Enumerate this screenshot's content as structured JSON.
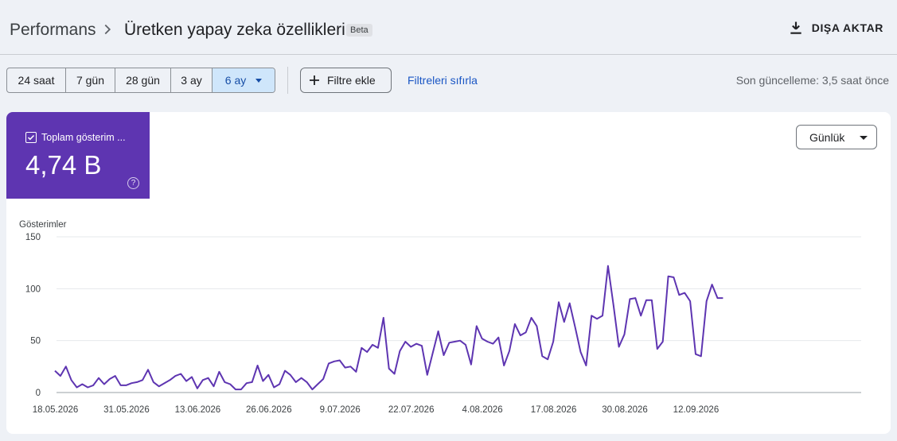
{
  "header": {
    "breadcrumb_root": "Performans",
    "title": "Üretken yapay zeka özellikleri",
    "badge": "Beta",
    "export_label": "DIŞA AKTAR"
  },
  "filters": {
    "ranges": [
      {
        "label": "24 saat",
        "selected": false
      },
      {
        "label": "7 gün",
        "selected": false
      },
      {
        "label": "28 gün",
        "selected": false
      },
      {
        "label": "3 ay",
        "selected": false
      },
      {
        "label": "6 ay",
        "selected": true
      }
    ],
    "add_filter": "Filtre ekle",
    "reset": "Filtreleri sıfırla",
    "last_updated": "Son güncelleme: 3,5 saat önce"
  },
  "metric": {
    "label": "Toplam gösterim ...",
    "value": "4,74 B",
    "help_glyph": "?",
    "color": "#5e35b1"
  },
  "granularity": "Günlük",
  "colors": {
    "accent": "#5e35b1",
    "selected_bg": "#cfe6fb",
    "link": "#1a56c4"
  },
  "chart_data": {
    "type": "line",
    "ylabel": "Gösterimler",
    "ylim": [
      0,
      150
    ],
    "yticks": [
      0,
      50,
      100,
      150
    ],
    "x_tick_labels": [
      "18.05.2026",
      "31.05.2026",
      "13.06.2026",
      "26.06.2026",
      "9.07.2026",
      "22.07.2026",
      "4.08.2026",
      "17.08.2026",
      "30.08.2026",
      "12.09.2026"
    ],
    "x_start": "18.05.2026",
    "x_tick_interval_days": 13,
    "series": [
      {
        "color": "#5e35b1",
        "values": [
          21,
          16,
          25,
          12,
          5,
          8,
          5,
          7,
          14,
          8,
          13,
          16,
          7,
          7,
          9,
          10,
          12,
          22,
          10,
          6,
          9,
          12,
          16,
          18,
          11,
          15,
          4,
          12,
          14,
          6,
          20,
          10,
          8,
          3,
          3,
          9,
          10,
          26,
          11,
          17,
          5,
          8,
          21,
          17,
          10,
          14,
          10,
          3,
          8,
          13,
          28,
          30,
          31,
          24,
          25,
          20,
          43,
          39,
          46,
          43,
          72,
          23,
          18,
          40,
          49,
          44,
          47,
          45,
          17,
          38,
          59,
          36,
          48,
          49,
          50,
          46,
          27,
          64,
          52,
          49,
          47,
          53,
          26,
          40,
          66,
          55,
          58,
          72,
          64,
          35,
          32,
          49,
          87,
          68,
          86,
          63,
          39,
          26,
          74,
          71,
          74,
          122,
          84,
          44,
          56,
          90,
          91,
          74,
          89,
          89,
          42,
          49,
          112,
          111,
          94,
          96,
          88,
          37,
          35,
          88,
          104,
          91,
          91
        ]
      }
    ]
  }
}
